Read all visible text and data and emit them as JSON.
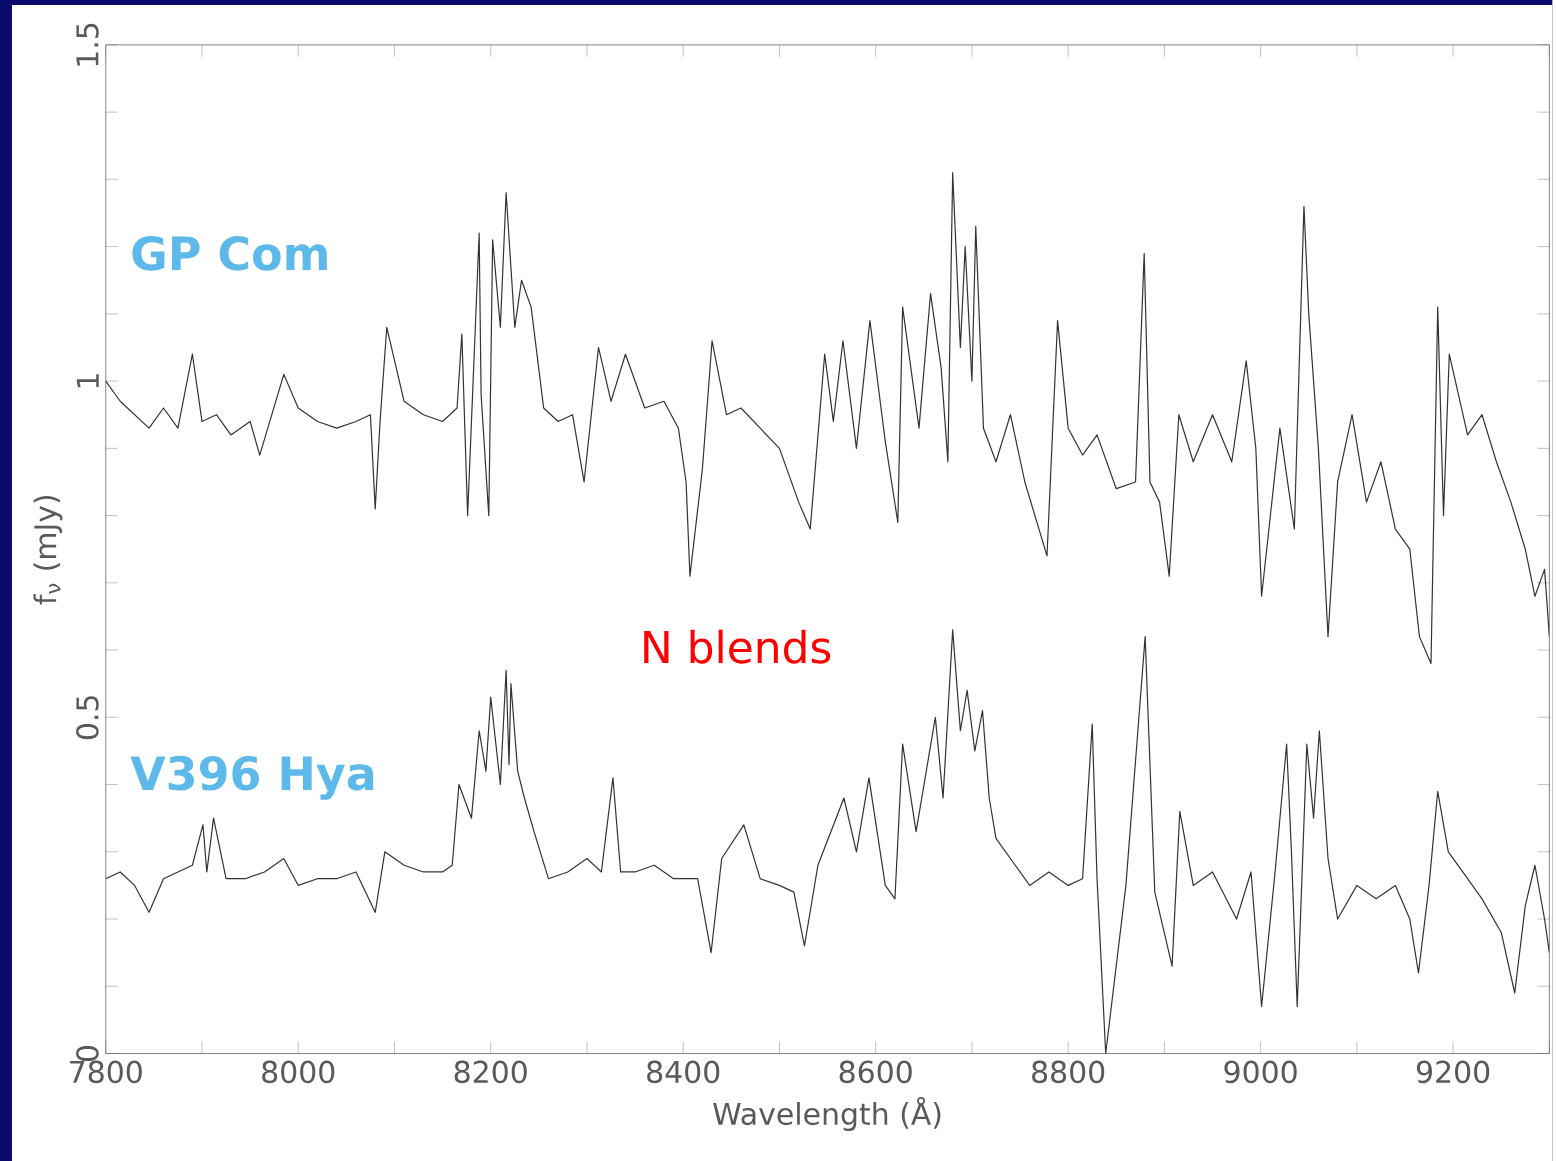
{
  "chart_data": {
    "type": "line",
    "xlabel": "Wavelength (Å)",
    "ylabel": "f$_{ν}$ (mJy)",
    "xlim": [
      7800,
      9300
    ],
    "ylim": [
      0,
      1.5
    ],
    "xticks": [
      7800,
      {
        "value": 7900,
        "label": null
      },
      8000,
      {
        "value": 8100,
        "label": null
      },
      8200,
      {
        "value": 8300,
        "label": null
      },
      8400,
      {
        "value": 8500,
        "label": null
      },
      8600,
      {
        "value": 8700,
        "label": null
      },
      8800,
      {
        "value": 8900,
        "label": null
      },
      9000,
      {
        "value": 9100,
        "label": null
      },
      9200,
      {
        "value": 9300,
        "label": null
      }
    ],
    "yticks": [
      0,
      {
        "value": 0.1,
        "label": null
      },
      {
        "value": 0.2,
        "label": null
      },
      {
        "value": 0.3,
        "label": null
      },
      {
        "value": 0.4,
        "label": null
      },
      0.5,
      {
        "value": 0.6,
        "label": null
      },
      {
        "value": 0.7,
        "label": null
      },
      {
        "value": 0.8,
        "label": null
      },
      {
        "value": 0.9,
        "label": null
      },
      1,
      {
        "value": 1.1,
        "label": null
      },
      {
        "value": 1.2,
        "label": null
      },
      {
        "value": 1.3,
        "label": null
      },
      {
        "value": 1.4,
        "label": null
      },
      1.5
    ],
    "annotations": [
      "N blends"
    ],
    "series": [
      {
        "name": "GP Com",
        "color": "#333333",
        "x": [
          7800,
          7815,
          7830,
          7845,
          7860,
          7875,
          7890,
          7900,
          7915,
          7930,
          7950,
          7960,
          7985,
          8000,
          8020,
          8040,
          8060,
          8075,
          8080,
          8085,
          8092,
          8110,
          8130,
          8150,
          8165,
          8170,
          8176,
          8188,
          8190,
          8198,
          8202,
          8210,
          8216,
          8225,
          8232,
          8242,
          8255,
          8270,
          8285,
          8297,
          8312,
          8325,
          8340,
          8360,
          8380,
          8395,
          8403,
          8407,
          8420,
          8430,
          8445,
          8460,
          8480,
          8500,
          8520,
          8532,
          8547,
          8556,
          8566,
          8580,
          8594,
          8610,
          8623,
          8628,
          8645,
          8657,
          8668,
          8675,
          8680,
          8688,
          8693,
          8700,
          8704,
          8712,
          8725,
          8740,
          8755,
          8778,
          8789,
          8800,
          8815,
          8830,
          8850,
          8870,
          8879,
          8885,
          8895,
          8905,
          8915,
          8930,
          8950,
          8970,
          8985,
          8995,
          9001,
          9020,
          9035,
          9045,
          9050,
          9060,
          9070,
          9080,
          9095,
          9110,
          9125,
          9140,
          9155,
          9165,
          9177,
          9184,
          9190,
          9196,
          9215,
          9230,
          9245,
          9260,
          9275,
          9285,
          9295,
          9300
        ],
        "values": [
          1.0,
          0.97,
          0.95,
          0.93,
          0.96,
          0.93,
          1.04,
          0.94,
          0.95,
          0.92,
          0.94,
          0.89,
          1.01,
          0.96,
          0.94,
          0.93,
          0.94,
          0.95,
          0.81,
          0.94,
          1.08,
          0.97,
          0.95,
          0.94,
          0.96,
          1.07,
          0.8,
          1.22,
          0.98,
          0.8,
          1.21,
          1.08,
          1.28,
          1.08,
          1.15,
          1.11,
          0.96,
          0.94,
          0.95,
          0.85,
          1.05,
          0.97,
          1.04,
          0.96,
          0.97,
          0.93,
          0.85,
          0.71,
          0.87,
          1.06,
          0.95,
          0.96,
          0.93,
          0.9,
          0.82,
          0.78,
          1.04,
          0.94,
          1.06,
          0.9,
          1.09,
          0.91,
          0.79,
          1.11,
          0.93,
          1.13,
          1.02,
          0.88,
          1.31,
          1.05,
          1.2,
          1.0,
          1.23,
          0.93,
          0.88,
          0.95,
          0.85,
          0.74,
          1.09,
          0.93,
          0.89,
          0.92,
          0.84,
          0.85,
          1.19,
          0.85,
          0.82,
          0.71,
          0.95,
          0.88,
          0.95,
          0.88,
          1.03,
          0.9,
          0.68,
          0.93,
          0.78,
          1.26,
          1.1,
          0.9,
          0.62,
          0.85,
          0.95,
          0.82,
          0.88,
          0.78,
          0.75,
          0.62,
          0.58,
          1.11,
          0.8,
          1.04,
          0.92,
          0.95,
          0.88,
          0.82,
          0.75,
          0.68,
          0.72,
          0.62
        ]
      },
      {
        "name": "V396 Hya",
        "color": "#333333",
        "x": [
          7800,
          7815,
          7830,
          7845,
          7860,
          7875,
          7890,
          7901,
          7905,
          7912,
          7925,
          7945,
          7965,
          7985,
          8000,
          8020,
          8040,
          8060,
          8080,
          8090,
          8110,
          8130,
          8150,
          8160,
          8167,
          8180,
          8188,
          8195,
          8200,
          8210,
          8216,
          8219,
          8221,
          8228,
          8235,
          8245,
          8260,
          8280,
          8300,
          8315,
          8327,
          8335,
          8350,
          8370,
          8390,
          8415,
          8429,
          8440,
          8463,
          8480,
          8500,
          8515,
          8526,
          8540,
          8567,
          8580,
          8593,
          8610,
          8620,
          8628,
          8642,
          8662,
          8670,
          8680,
          8688,
          8695,
          8703,
          8711,
          8718,
          8725,
          8745,
          8760,
          8780,
          8800,
          8815,
          8825,
          8830,
          8839,
          8860,
          8880,
          8890,
          8908,
          8916,
          8930,
          8950,
          8975,
          8990,
          9001,
          9015,
          9027,
          9032,
          9038,
          9048,
          9055,
          9061,
          9070,
          9080,
          9100,
          9120,
          9140,
          9155,
          9164,
          9175,
          9184,
          9195,
          9210,
          9230,
          9250,
          9264,
          9275,
          9285,
          9295,
          9300
        ],
        "values": [
          0.26,
          0.27,
          0.25,
          0.21,
          0.26,
          0.27,
          0.28,
          0.34,
          0.27,
          0.35,
          0.26,
          0.26,
          0.27,
          0.29,
          0.25,
          0.26,
          0.26,
          0.27,
          0.21,
          0.3,
          0.28,
          0.27,
          0.27,
          0.28,
          0.4,
          0.35,
          0.48,
          0.42,
          0.53,
          0.4,
          0.57,
          0.43,
          0.55,
          0.42,
          0.38,
          0.33,
          0.26,
          0.27,
          0.29,
          0.27,
          0.41,
          0.27,
          0.27,
          0.28,
          0.26,
          0.26,
          0.15,
          0.29,
          0.34,
          0.26,
          0.25,
          0.24,
          0.16,
          0.28,
          0.38,
          0.3,
          0.41,
          0.25,
          0.23,
          0.46,
          0.33,
          0.5,
          0.38,
          0.63,
          0.48,
          0.54,
          0.45,
          0.51,
          0.38,
          0.32,
          0.28,
          0.25,
          0.27,
          0.25,
          0.26,
          0.49,
          0.26,
          0.0,
          0.25,
          0.62,
          0.24,
          0.13,
          0.36,
          0.25,
          0.27,
          0.2,
          0.27,
          0.07,
          0.27,
          0.46,
          0.3,
          0.07,
          0.46,
          0.35,
          0.48,
          0.29,
          0.2,
          0.25,
          0.23,
          0.25,
          0.2,
          0.12,
          0.25,
          0.39,
          0.3,
          0.27,
          0.23,
          0.18,
          0.09,
          0.22,
          0.28,
          0.2,
          0.15
        ]
      }
    ]
  }
}
